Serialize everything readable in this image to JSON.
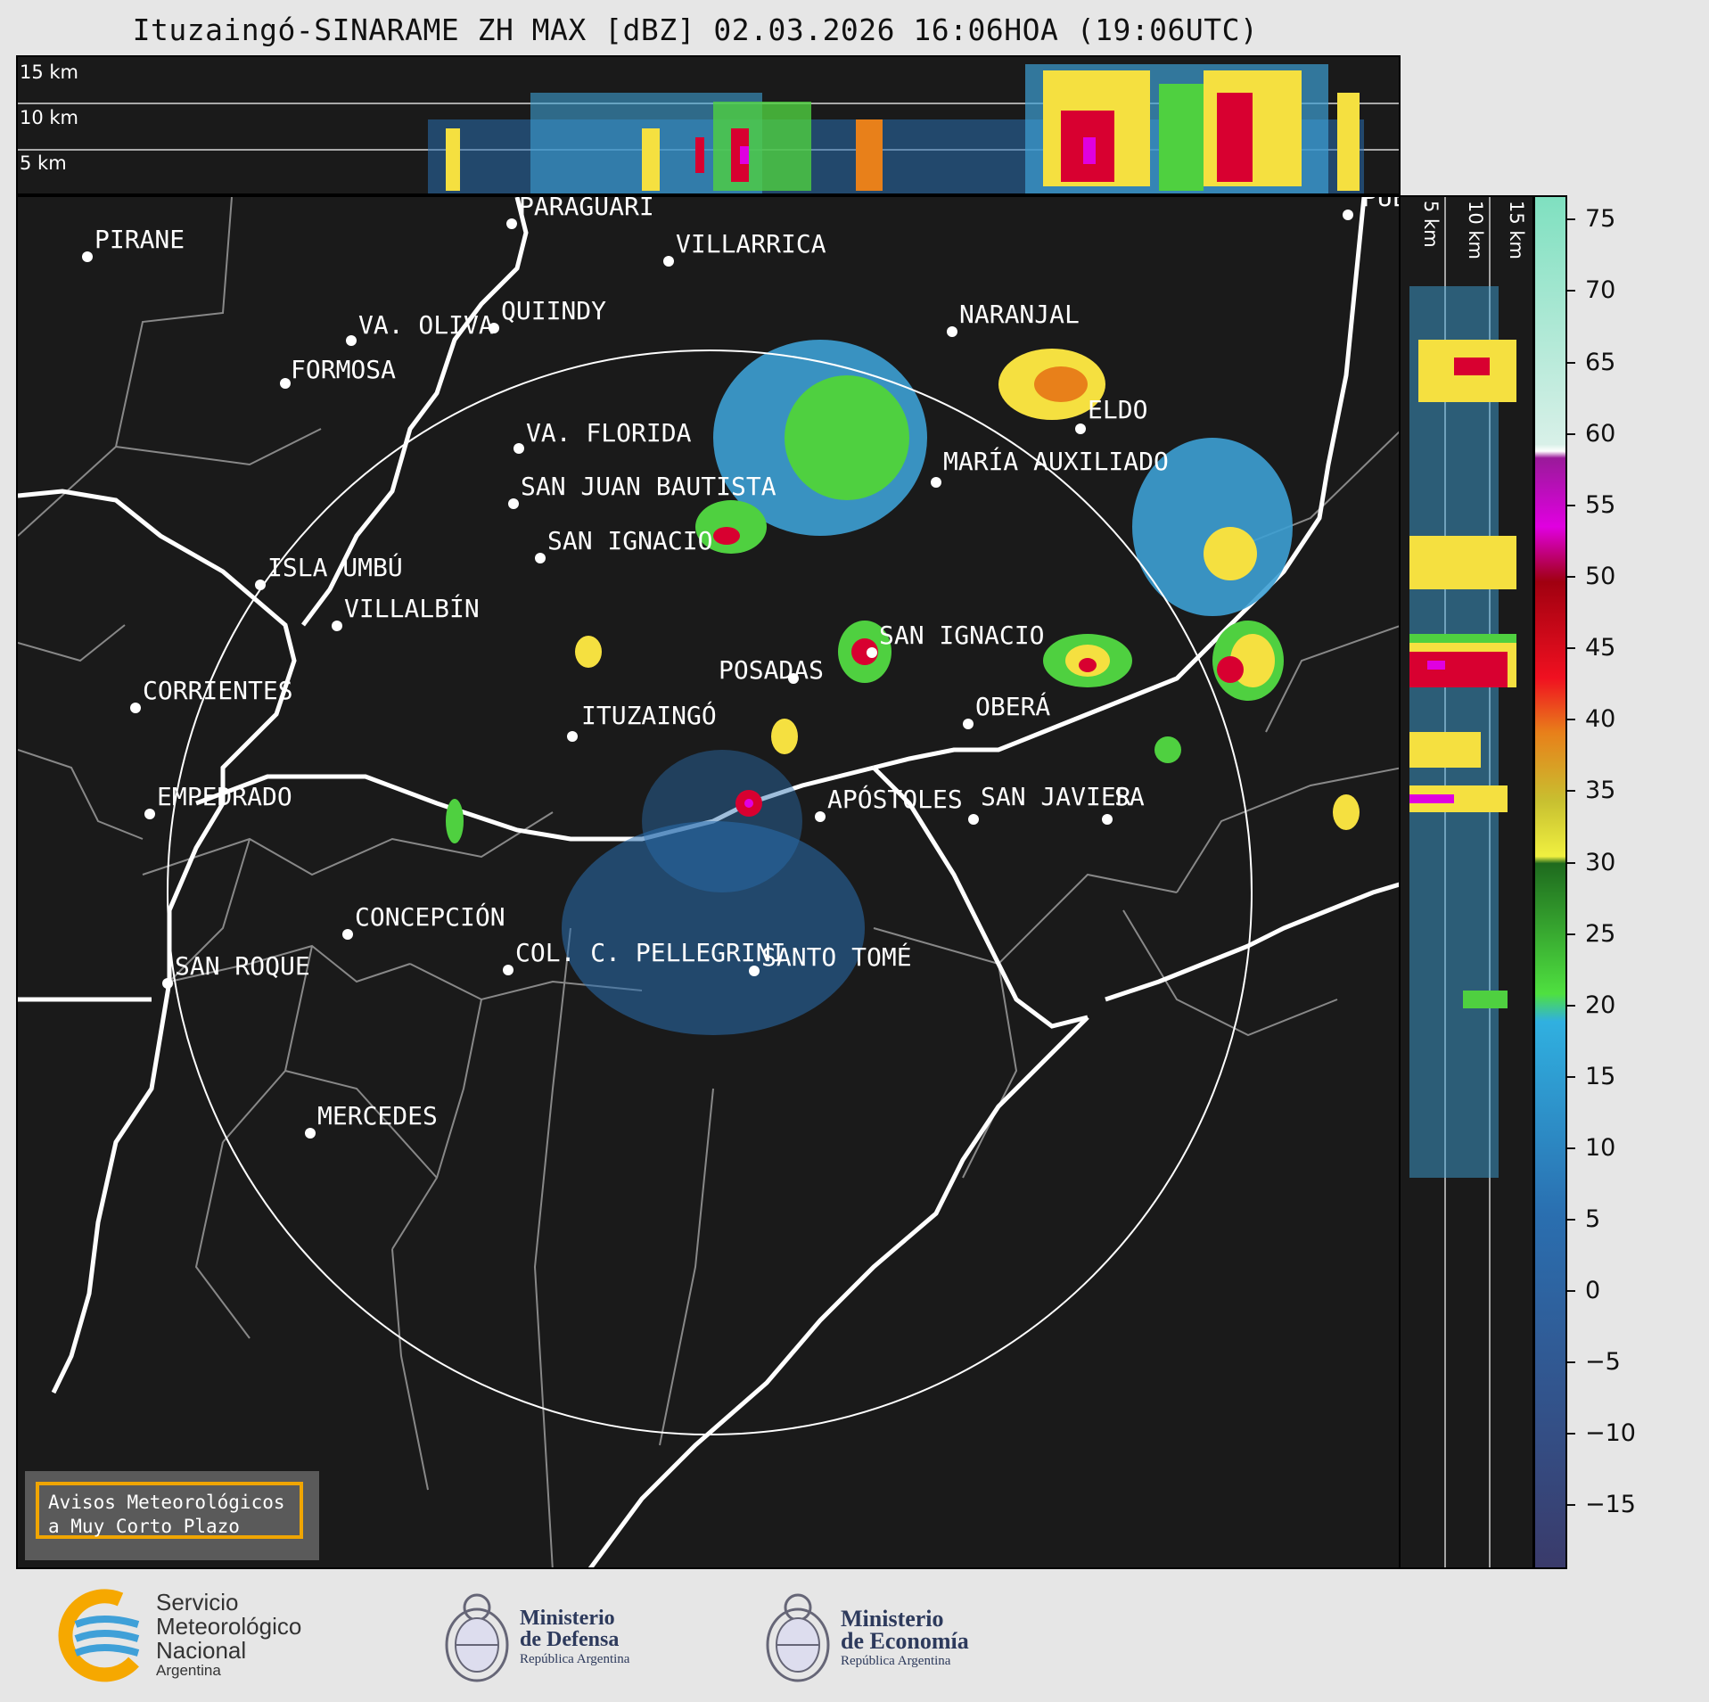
{
  "title": "Ituzaingó-SINARAME ZH MAX [dBZ] 02.03.2026 16:06HOA (19:06UTC)",
  "top_panel": {
    "heights": [
      "15 km",
      "10 km",
      "5 km"
    ]
  },
  "side_panel": {
    "heights": [
      "5 km",
      "10 km",
      "15 km"
    ]
  },
  "cities": [
    {
      "name": "PIRANE"
    },
    {
      "name": "PARAGUARÍ"
    },
    {
      "name": "VILLARRICA"
    },
    {
      "name": "PUE"
    },
    {
      "name": "QUIINDY"
    },
    {
      "name": "VA. OLIVA"
    },
    {
      "name": "NARANJAL"
    },
    {
      "name": "FORMOSA"
    },
    {
      "name": "VA. FLORIDA"
    },
    {
      "name": "ELDO"
    },
    {
      "name": "MARÍA AUXILIADO"
    },
    {
      "name": "SAN JUAN BAUTISTA"
    },
    {
      "name": "SAN IGNACIO"
    },
    {
      "name": "ISLA UMBÚ"
    },
    {
      "name": "VILLALBÍN"
    },
    {
      "name": "SAN IGNACIO"
    },
    {
      "name": "POSADAS"
    },
    {
      "name": "CORRIENTES"
    },
    {
      "name": "ITUZAINGÓ"
    },
    {
      "name": "OBERÁ"
    },
    {
      "name": "EMPEDRADO"
    },
    {
      "name": "APÓSTOLES"
    },
    {
      "name": "SAN JAVIER"
    },
    {
      "name": "SA"
    },
    {
      "name": "CONCEPCIÓN"
    },
    {
      "name": "COL. C. PELLEGRINI"
    },
    {
      "name": "SANTO TOMÉ"
    },
    {
      "name": "SAN ROQUE"
    },
    {
      "name": "MERCEDES"
    }
  ],
  "notice": {
    "line1": "Avisos Meteorológicos",
    "line2": "a Muy Corto Plazo"
  },
  "colorbar": {
    "unit": "dBZ",
    "ticks": [
      "75",
      "70",
      "65",
      "60",
      "55",
      "50",
      "45",
      "40",
      "35",
      "30",
      "25",
      "20",
      "15",
      "10",
      "5",
      "0",
      "−10",
      "−15"
    ],
    "extra_tick": "−5"
  },
  "logos": {
    "smn_line1": "Servicio",
    "smn_line2": "Meteorológico",
    "smn_line3": "Nacional",
    "smn_line4": "Argentina",
    "defensa_line1": "Ministerio",
    "defensa_line2": "de Defensa",
    "defensa_line3": "República Argentina",
    "economia_line1": "Ministerio",
    "economia_line2": "de Economía",
    "economia_line3": "República Argentina"
  },
  "colors": {
    "background": "#1a1a1a",
    "ring": "#ffffff",
    "notice_border": "#f0a500"
  }
}
